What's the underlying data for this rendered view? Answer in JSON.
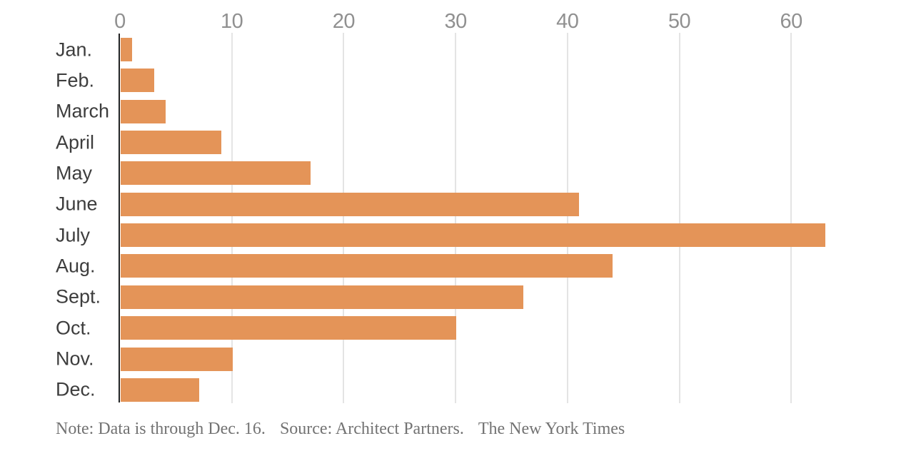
{
  "chart_data": {
    "type": "bar",
    "orientation": "horizontal",
    "categories": [
      "Jan.",
      "Feb.",
      "March",
      "April",
      "May",
      "June",
      "July",
      "Aug.",
      "Sept.",
      "Oct.",
      "Nov.",
      "Dec."
    ],
    "values": [
      1,
      3,
      4,
      9,
      17,
      41,
      63,
      44,
      36,
      30,
      10,
      7
    ],
    "x_ticks": [
      0,
      10,
      20,
      30,
      40,
      50,
      60
    ],
    "xlim": [
      0,
      70
    ],
    "grid": "vertical-gridlines-on",
    "legend": "none",
    "bar_color": "#e49458"
  },
  "note": {
    "note_text": "Note: Data is through Dec. 16.",
    "source_text": "Source: Architect Partners.",
    "credit_text": "The New York Times"
  },
  "colors": {
    "bar": "#e49458",
    "gridline": "#e4e4e4",
    "zero_axis": "#222222",
    "tick_label": "#909090",
    "category_label": "#3d3d3d",
    "note_text": "#737373",
    "background": "#ffffff"
  }
}
